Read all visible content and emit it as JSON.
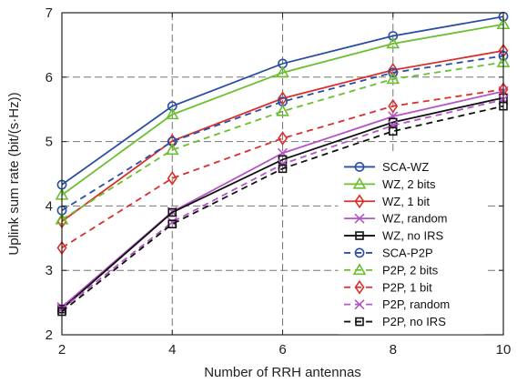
{
  "chart_data": {
    "type": "line",
    "xlabel": "Number of RRH antennas",
    "ylabel": "Uplink sum rate (bit/(s·Hz))",
    "x": [
      2,
      4,
      6,
      8,
      10
    ],
    "xlim": [
      2,
      10
    ],
    "ylim": [
      2,
      7
    ],
    "xticks": [
      2,
      4,
      6,
      8,
      10
    ],
    "yticks": [
      2,
      3,
      4,
      5,
      6,
      7
    ],
    "grid": true,
    "legend_position": "bottom-right",
    "series": [
      {
        "name": "SCA-WZ",
        "color": "#2b4ea2",
        "dash": "solid",
        "marker": "circle",
        "values": [
          4.33,
          5.55,
          6.21,
          6.64,
          6.94
        ]
      },
      {
        "name": "WZ, 2 bits",
        "color": "#6abf2e",
        "dash": "solid",
        "marker": "triangle",
        "values": [
          4.17,
          5.42,
          6.07,
          6.52,
          6.82
        ]
      },
      {
        "name": "WZ, 1 bit",
        "color": "#d9302c",
        "dash": "solid",
        "marker": "diamond",
        "values": [
          3.76,
          5.01,
          5.67,
          6.11,
          6.41
        ]
      },
      {
        "name": "WZ, random",
        "color": "#b455c8",
        "dash": "solid",
        "marker": "x",
        "values": [
          2.43,
          3.91,
          4.82,
          5.39,
          5.78
        ]
      },
      {
        "name": "WZ, no IRS",
        "color": "#111111",
        "dash": "solid",
        "marker": "square",
        "values": [
          2.4,
          3.9,
          4.72,
          5.3,
          5.68
        ]
      },
      {
        "name": "SCA-P2P",
        "color": "#2b4ea2",
        "dash": "dashed",
        "marker": "circle",
        "values": [
          3.93,
          5.0,
          5.62,
          6.07,
          6.33
        ]
      },
      {
        "name": "P2P, 2 bits",
        "color": "#6abf2e",
        "dash": "dashed",
        "marker": "triangle",
        "values": [
          3.79,
          4.87,
          5.47,
          5.97,
          6.23
        ]
      },
      {
        "name": "P2P, 1 bit",
        "color": "#d9302c",
        "dash": "dashed",
        "marker": "diamond",
        "values": [
          3.35,
          4.43,
          5.05,
          5.55,
          5.81
        ]
      },
      {
        "name": "P2P, random",
        "color": "#b455c8",
        "dash": "dashed",
        "marker": "x",
        "values": [
          2.4,
          3.75,
          4.65,
          5.25,
          5.65
        ]
      },
      {
        "name": "P2P, no IRS",
        "color": "#111111",
        "dash": "dashed",
        "marker": "square",
        "values": [
          2.36,
          3.72,
          4.58,
          5.16,
          5.55
        ]
      }
    ]
  }
}
